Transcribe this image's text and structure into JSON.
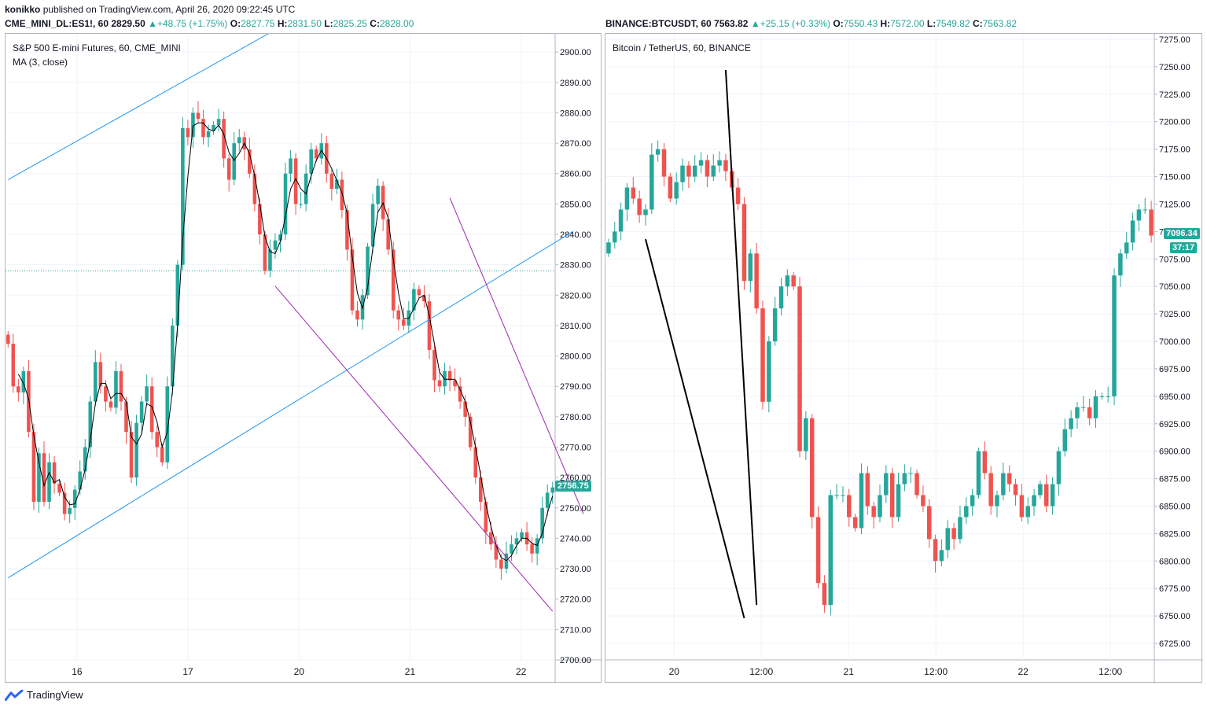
{
  "publish_line": {
    "author": "konikko",
    "text": "published on TradingView.com, April 26, 2020 09:22:45 UTC"
  },
  "left_header": {
    "symbol": "CME_MINI_DL:ES1!, 60",
    "last": "2829.50",
    "change": "+48.75 (+1.75%)",
    "O": "2827.75",
    "H": "2831.50",
    "L": "2825.25",
    "C": "2828.00"
  },
  "right_header": {
    "symbol": "BINANCE:BTCUSDT, 60",
    "last": "7563.82",
    "change": "+25.15 (+0.33%)",
    "O": "7550.43",
    "H": "7572.00",
    "L": "7549.82",
    "C": "7563.82"
  },
  "colors": {
    "up": "#26a69a",
    "down": "#ef5350",
    "channel": "#2196f3",
    "wedge": "#9c27b0",
    "trend": "#000000",
    "ma": "#000000"
  },
  "brand": {
    "name": "TradingView",
    "icon": "tradingview-logo-icon"
  },
  "chart_data": [
    {
      "type": "candlestick",
      "title": "S&P 500 E-mini Futures, 60, CME_MINI",
      "indicator": "MA (3, close)",
      "x_ticks": [
        "16",
        "17",
        "20",
        "21",
        "22"
      ],
      "y_ticks": [
        "2700.00",
        "2710.00",
        "2720.00",
        "2730.00",
        "2740.00",
        "2750.00",
        "2760.00",
        "2770.00",
        "2780.00",
        "2790.00",
        "2800.00",
        "2810.00",
        "2820.00",
        "2830.00",
        "2840.00",
        "2850.00",
        "2860.00",
        "2870.00",
        "2880.00",
        "2890.00",
        "2900.00"
      ],
      "ylim": [
        2700,
        2906
      ],
      "last_price_label": "2756.75",
      "last_price": 2756.75,
      "dotted_line_price": 2828,
      "closes": [
        2804,
        2790,
        2788,
        2795,
        2775,
        2752,
        2768,
        2752,
        2765,
        2758,
        2755,
        2748,
        2750,
        2756,
        2762,
        2770,
        2785,
        2798,
        2790,
        2785,
        2783,
        2795,
        2785,
        2775,
        2760,
        2778,
        2785,
        2790,
        2775,
        2770,
        2765,
        2790,
        2810,
        2830,
        2875,
        2872,
        2880,
        2878,
        2872,
        2874,
        2876,
        2878,
        2865,
        2858,
        2870,
        2872,
        2868,
        2860,
        2850,
        2840,
        2828,
        2835,
        2838,
        2840,
        2860,
        2865,
        2850,
        2850,
        2860,
        2868,
        2865,
        2870,
        2860,
        2855,
        2858,
        2848,
        2835,
        2815,
        2812,
        2820,
        2836,
        2850,
        2856,
        2845,
        2835,
        2815,
        2812,
        2810,
        2815,
        2822,
        2820,
        2818,
        2802,
        2792,
        2790,
        2795,
        2792,
        2790,
        2785,
        2780,
        2770,
        2760,
        2752,
        2742,
        2738,
        2733,
        2730,
        2735,
        2738,
        2740,
        2742,
        2738,
        2735,
        2740,
        2750,
        2755,
        2756.75
      ],
      "annotations": {
        "channel_upper": [
          [
            0,
            2858
          ],
          [
            58,
            2913
          ]
        ],
        "channel_lower": [
          [
            0,
            2727
          ],
          [
            110,
            2841
          ]
        ],
        "wedge_upper": [
          [
            86,
            2852
          ],
          [
            112,
            2748
          ]
        ],
        "wedge_lower": [
          [
            52,
            2823
          ],
          [
            106,
            2716
          ]
        ]
      }
    },
    {
      "type": "candlestick",
      "title": "Bitcoin / TetherUS, 60, BINANCE",
      "x_ticks": [
        "20",
        "12:00",
        "21",
        "12:00",
        "22",
        "12:00"
      ],
      "y_ticks": [
        "6725.00",
        "6750.00",
        "6775.00",
        "6800.00",
        "6825.00",
        "6850.00",
        "6875.00",
        "6900.00",
        "6925.00",
        "6950.00",
        "6975.00",
        "7000.00",
        "7025.00",
        "7050.00",
        "7075.00",
        "7100.00",
        "7125.00",
        "7150.00",
        "7175.00",
        "7200.00",
        "7225.00",
        "7250.00",
        "7275.00"
      ],
      "ylim": [
        6710,
        7280
      ],
      "last_price_label": "7096.34",
      "last_price": 7096.34,
      "countdown_label": "37:17",
      "closes": [
        7090,
        7100,
        7120,
        7140,
        7130,
        7115,
        7120,
        7170,
        7175,
        7150,
        7130,
        7145,
        7160,
        7150,
        7160,
        7165,
        7150,
        7160,
        7165,
        7155,
        7140,
        7125,
        7055,
        7080,
        7030,
        6945,
        7000,
        7030,
        7050,
        7060,
        7050,
        6900,
        6930,
        6840,
        6780,
        6760,
        6860,
        6860,
        6860,
        6840,
        6830,
        6880,
        6850,
        6840,
        6860,
        6880,
        6840,
        6870,
        6880,
        6880,
        6860,
        6850,
        6820,
        6800,
        6810,
        6830,
        6820,
        6840,
        6850,
        6860,
        6900,
        6880,
        6850,
        6860,
        6880,
        6870,
        6860,
        6840,
        6850,
        6860,
        6870,
        6850,
        6870,
        6900,
        6920,
        6930,
        6940,
        6940,
        6930,
        6950,
        6950,
        6950,
        7060,
        7080,
        7090,
        7110,
        7120,
        7120,
        7096.34
      ],
      "annotations": {
        "trend_left": [
          [
            6,
            7093
          ],
          [
            22,
            6748
          ]
        ],
        "trend_right": [
          [
            19,
            7247
          ],
          [
            24,
            6760
          ]
        ]
      }
    }
  ]
}
